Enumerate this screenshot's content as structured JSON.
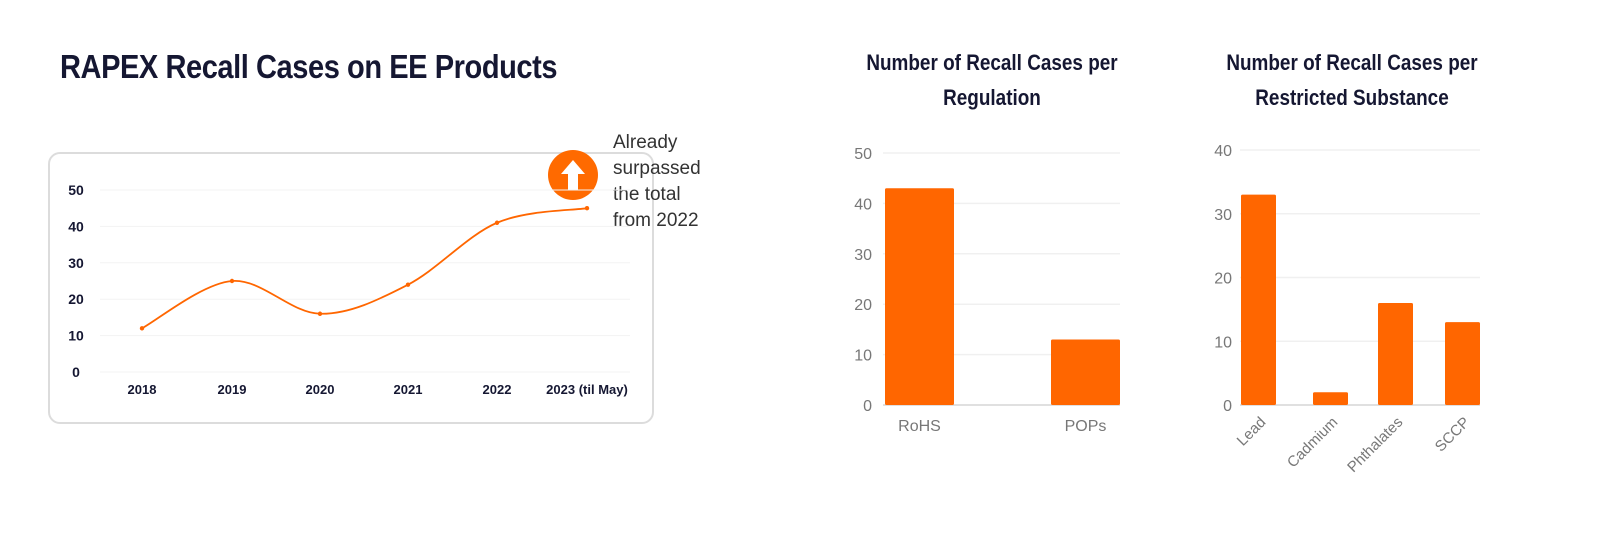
{
  "main_title": "RAPEX Recall Cases on EE Products",
  "annotation": {
    "lines": [
      "Already",
      "surpassed",
      "the total",
      "from 2022"
    ],
    "icon": "arrow-up-circle-icon"
  },
  "colors": {
    "accent": "#ff6600",
    "title": "#151732",
    "grid": "#eeeeee"
  },
  "chart_data": [
    {
      "type": "line",
      "title": "",
      "categories": [
        "2018",
        "2019",
        "2020",
        "2021",
        "2022",
        "2023 (til May)"
      ],
      "values": [
        12,
        25,
        16,
        24,
        41,
        45
      ],
      "ylim": [
        0,
        50
      ],
      "yticks": [
        "0",
        "10",
        "20",
        "30",
        "40",
        "50"
      ],
      "smooth": true,
      "grid": true
    },
    {
      "type": "bar",
      "title_lines": [
        "Number of Recall Cases per",
        "Regulation"
      ],
      "categories": [
        "RoHS",
        "POPs"
      ],
      "values": [
        43,
        13
      ],
      "ylim": [
        0,
        50
      ],
      "yticks": [
        "0",
        "10",
        "20",
        "30",
        "40",
        "50"
      ],
      "grid": true
    },
    {
      "type": "bar",
      "title_lines": [
        "Number of Recall Cases per",
        "Restricted Substance"
      ],
      "categories": [
        "Lead",
        "Cadmium",
        "Phthalates",
        "SCCP"
      ],
      "values": [
        33,
        2,
        16,
        13
      ],
      "ylim": [
        0,
        40
      ],
      "yticks": [
        "0",
        "10",
        "20",
        "30",
        "40"
      ],
      "grid": true
    }
  ]
}
